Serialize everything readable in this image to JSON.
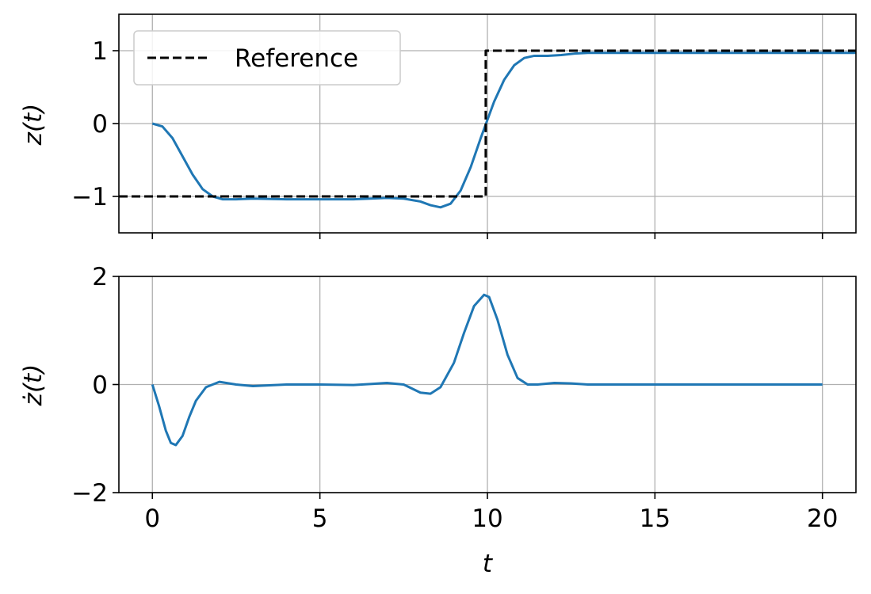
{
  "colors": {
    "series": "#1f77b4",
    "reference": "#000000",
    "grid": "#b0b0b0"
  },
  "chart_data": [
    {
      "type": "line",
      "ylabel": "z(t)",
      "xlim": [
        -1,
        21
      ],
      "ylim": [
        -1.5,
        1.5
      ],
      "xticks": [
        0,
        5,
        10,
        15,
        20
      ],
      "yticks": [
        -1,
        0,
        1
      ],
      "ytick_labels": [
        "−1",
        "0",
        "1"
      ],
      "grid": true,
      "legend": {
        "position": "top-left",
        "entries": [
          "Reference"
        ]
      },
      "series": [
        {
          "style": "solid",
          "x": [
            0,
            0.3,
            0.6,
            0.9,
            1.2,
            1.5,
            1.8,
            2.1,
            2.5,
            3,
            4,
            5,
            5.5,
            6,
            6.5,
            7,
            7.5,
            8,
            8.3,
            8.6,
            8.9,
            9.2,
            9.5,
            9.8,
            10,
            10.2,
            10.5,
            10.8,
            11.1,
            11.4,
            11.8,
            12.2,
            12.6,
            13,
            14,
            16,
            18,
            21
          ],
          "y": [
            0,
            -0.04,
            -0.2,
            -0.45,
            -0.7,
            -0.9,
            -1.0,
            -1.04,
            -1.04,
            -1.03,
            -1.04,
            -1.04,
            -1.04,
            -1.04,
            -1.03,
            -1.02,
            -1.03,
            -1.07,
            -1.12,
            -1.15,
            -1.1,
            -0.92,
            -0.6,
            -0.2,
            0.05,
            0.3,
            0.6,
            0.8,
            0.9,
            0.93,
            0.93,
            0.94,
            0.96,
            0.97,
            0.97,
            0.97,
            0.97,
            0.97
          ]
        },
        {
          "name": "Reference",
          "style": "dashed",
          "x": [
            -1,
            9.95,
            9.95,
            21
          ],
          "y": [
            -1,
            -1,
            1,
            1
          ]
        }
      ]
    },
    {
      "type": "line",
      "ylabel": "ż(t)",
      "xlabel": "t",
      "xlim": [
        -1,
        21
      ],
      "ylim": [
        -2,
        2
      ],
      "xticks": [
        0,
        5,
        10,
        15,
        20
      ],
      "xtick_labels": [
        "0",
        "5",
        "10",
        "15",
        "20"
      ],
      "yticks": [
        -2,
        0,
        2
      ],
      "ytick_labels": [
        "−2",
        "0",
        "2"
      ],
      "grid": true,
      "series": [
        {
          "style": "solid",
          "x": [
            0,
            0.2,
            0.4,
            0.55,
            0.7,
            0.9,
            1.1,
            1.3,
            1.6,
            2,
            2.5,
            3,
            4,
            5,
            6,
            6.5,
            7,
            7.5,
            8,
            8.3,
            8.6,
            9,
            9.3,
            9.6,
            9.9,
            10.05,
            10.3,
            10.6,
            10.9,
            11.2,
            11.5,
            12,
            12.5,
            13,
            13.5,
            15,
            20
          ],
          "y": [
            0,
            -0.4,
            -0.85,
            -1.08,
            -1.12,
            -0.95,
            -0.6,
            -0.3,
            -0.05,
            0.05,
            0.0,
            -0.03,
            0.0,
            0.0,
            -0.01,
            0.01,
            0.03,
            0.0,
            -0.15,
            -0.17,
            -0.05,
            0.4,
            0.95,
            1.45,
            1.66,
            1.62,
            1.2,
            0.55,
            0.12,
            0.0,
            0.0,
            0.03,
            0.02,
            0.0,
            0.0,
            0.0,
            0.0
          ]
        }
      ]
    }
  ]
}
